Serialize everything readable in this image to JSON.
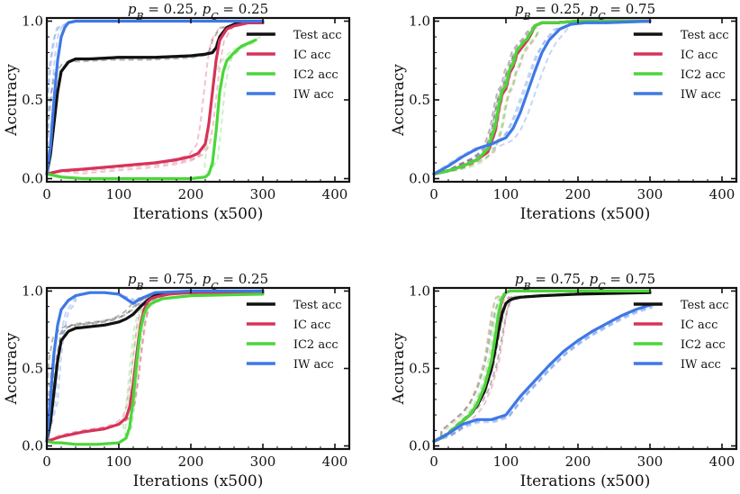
{
  "chart_data": [
    {
      "type": "line",
      "title": "p_B = 0.25, p_C = 0.25",
      "xlabel": "Iterations (x500)",
      "ylabel": "Accuracy",
      "xlim": [
        0,
        420
      ],
      "ylim": [
        0.0,
        1.0
      ],
      "xticks": [
        "0",
        "100",
        "200",
        "300",
        "400"
      ],
      "yticks": [
        "0.0",
        "0.5",
        "1.0"
      ],
      "legend": "top-right",
      "series": [
        {
          "name": "Test acc",
          "color": "#111111",
          "x": [
            0,
            5,
            10,
            15,
            20,
            30,
            40,
            60,
            100,
            150,
            200,
            220,
            230,
            235,
            240,
            250,
            260,
            270,
            280,
            300
          ],
          "y": [
            0.03,
            0.15,
            0.35,
            0.55,
            0.68,
            0.74,
            0.76,
            0.76,
            0.77,
            0.77,
            0.78,
            0.79,
            0.8,
            0.83,
            0.9,
            0.96,
            0.98,
            0.99,
            0.99,
            0.99
          ]
        },
        {
          "name": "IC acc",
          "color": "#d6335a",
          "x": [
            0,
            20,
            50,
            100,
            150,
            180,
            200,
            210,
            220,
            225,
            230,
            235,
            240,
            250,
            260,
            270,
            280,
            300
          ],
          "y": [
            0.03,
            0.05,
            0.06,
            0.08,
            0.1,
            0.12,
            0.14,
            0.16,
            0.22,
            0.35,
            0.55,
            0.75,
            0.88,
            0.95,
            0.97,
            0.98,
            0.99,
            0.99
          ]
        },
        {
          "name": "IC2 acc",
          "color": "#4bd63a",
          "x": [
            0,
            10,
            20,
            50,
            100,
            150,
            200,
            220,
            225,
            230,
            235,
            240,
            245,
            250,
            260,
            270,
            280,
            290
          ],
          "y": [
            0.03,
            0.02,
            0.01,
            0.0,
            0.0,
            0.0,
            0.0,
            0.01,
            0.03,
            0.1,
            0.3,
            0.55,
            0.68,
            0.75,
            0.8,
            0.84,
            0.86,
            0.88
          ]
        },
        {
          "name": "IW acc",
          "color": "#3f78e6",
          "x": [
            0,
            5,
            10,
            15,
            20,
            25,
            30,
            40,
            60,
            100,
            200,
            300
          ],
          "y": [
            0.03,
            0.2,
            0.5,
            0.75,
            0.9,
            0.96,
            0.99,
            1.0,
            1.0,
            1.0,
            1.0,
            1.0
          ]
        }
      ]
    },
    {
      "type": "line",
      "title": "p_B = 0.25, p_C = 0.75",
      "xlabel": "Iterations (x500)",
      "ylabel": "Accuracy",
      "xlim": [
        0,
        420
      ],
      "ylim": [
        0.0,
        1.0
      ],
      "xticks": [
        "0",
        "100",
        "200",
        "300",
        "400"
      ],
      "yticks": [
        "0.0",
        "0.5",
        "1.0"
      ],
      "legend": "top-right",
      "series": [
        {
          "name": "Test acc",
          "color": "#111111",
          "x": [
            0,
            20,
            40,
            60,
            75,
            85,
            90,
            95,
            100,
            105,
            110,
            115,
            120,
            125,
            130,
            135,
            140,
            145,
            150,
            170,
            200,
            300
          ],
          "y": [
            0.03,
            0.05,
            0.08,
            0.12,
            0.18,
            0.32,
            0.45,
            0.55,
            0.58,
            0.68,
            0.72,
            0.8,
            0.83,
            0.86,
            0.88,
            0.92,
            0.97,
            0.98,
            0.99,
            0.99,
            1.0,
            1.0
          ]
        },
        {
          "name": "IC acc",
          "color": "#d6335a",
          "x": [
            0,
            20,
            40,
            60,
            75,
            85,
            90,
            95,
            100,
            105,
            110,
            115,
            120,
            125,
            130,
            135,
            140,
            145,
            150,
            170,
            200,
            300
          ],
          "y": [
            0.03,
            0.05,
            0.08,
            0.12,
            0.17,
            0.3,
            0.44,
            0.54,
            0.57,
            0.67,
            0.71,
            0.79,
            0.82,
            0.85,
            0.88,
            0.92,
            0.97,
            0.98,
            0.99,
            0.99,
            1.0,
            1.0
          ]
        },
        {
          "name": "IC2 acc",
          "color": "#4bd63a",
          "x": [
            0,
            20,
            40,
            60,
            75,
            85,
            90,
            95,
            100,
            105,
            110,
            115,
            120,
            125,
            130,
            135,
            140,
            145,
            150,
            170,
            200,
            300
          ],
          "y": [
            0.03,
            0.05,
            0.08,
            0.12,
            0.19,
            0.33,
            0.46,
            0.56,
            0.59,
            0.69,
            0.73,
            0.81,
            0.84,
            0.87,
            0.89,
            0.93,
            0.97,
            0.98,
            0.99,
            0.99,
            1.0,
            1.0
          ]
        },
        {
          "name": "IW acc",
          "color": "#3f78e6",
          "x": [
            0,
            20,
            40,
            60,
            80,
            100,
            110,
            120,
            130,
            140,
            150,
            160,
            175,
            190,
            210,
            240,
            300
          ],
          "y": [
            0.03,
            0.08,
            0.14,
            0.19,
            0.22,
            0.26,
            0.32,
            0.42,
            0.55,
            0.68,
            0.8,
            0.88,
            0.95,
            0.98,
            0.99,
            0.99,
            1.0
          ]
        }
      ]
    },
    {
      "type": "line",
      "title": "p_B = 0.75, p_C = 0.25",
      "xlabel": "Iterations (x500)",
      "ylabel": "Accuracy",
      "xlim": [
        0,
        420
      ],
      "ylim": [
        0.0,
        1.0
      ],
      "xticks": [
        "0",
        "100",
        "200",
        "300",
        "400"
      ],
      "yticks": [
        "0.0",
        "0.5",
        "1.0"
      ],
      "legend": "top-right",
      "series": [
        {
          "name": "Test acc",
          "color": "#111111",
          "x": [
            0,
            5,
            10,
            15,
            20,
            30,
            40,
            60,
            80,
            100,
            110,
            120,
            130,
            140,
            150,
            160,
            170,
            200,
            300
          ],
          "y": [
            0.03,
            0.15,
            0.35,
            0.55,
            0.68,
            0.74,
            0.76,
            0.77,
            0.78,
            0.8,
            0.82,
            0.85,
            0.9,
            0.94,
            0.97,
            0.98,
            0.99,
            0.99,
            1.0
          ]
        },
        {
          "name": "IC acc",
          "color": "#d6335a",
          "x": [
            0,
            20,
            50,
            80,
            100,
            110,
            115,
            120,
            125,
            130,
            135,
            140,
            145,
            150,
            160,
            170,
            200,
            300
          ],
          "y": [
            0.03,
            0.06,
            0.09,
            0.11,
            0.14,
            0.18,
            0.25,
            0.4,
            0.6,
            0.78,
            0.88,
            0.93,
            0.95,
            0.96,
            0.97,
            0.98,
            0.99,
            0.99
          ]
        },
        {
          "name": "IC2 acc",
          "color": "#4bd63a",
          "x": [
            0,
            10,
            20,
            40,
            70,
            100,
            110,
            115,
            120,
            125,
            130,
            135,
            140,
            145,
            150,
            160,
            180,
            200,
            300
          ],
          "y": [
            0.03,
            0.02,
            0.02,
            0.01,
            0.01,
            0.02,
            0.05,
            0.12,
            0.3,
            0.55,
            0.75,
            0.85,
            0.9,
            0.92,
            0.93,
            0.95,
            0.96,
            0.97,
            0.98
          ]
        },
        {
          "name": "IW acc",
          "color": "#3f78e6",
          "x": [
            0,
            5,
            10,
            15,
            20,
            30,
            40,
            60,
            80,
            100,
            110,
            120,
            130,
            150,
            200,
            300
          ],
          "y": [
            0.03,
            0.3,
            0.6,
            0.78,
            0.88,
            0.94,
            0.97,
            0.99,
            0.99,
            0.98,
            0.95,
            0.92,
            0.95,
            0.99,
            1.0,
            1.0
          ]
        }
      ]
    },
    {
      "type": "line",
      "title": "p_B = 0.75, p_C = 0.75",
      "xlabel": "Iterations (x500)",
      "ylabel": "Accuracy",
      "xlim": [
        0,
        420
      ],
      "ylim": [
        0.0,
        1.0
      ],
      "xticks": [
        "0",
        "100",
        "200",
        "300",
        "400"
      ],
      "yticks": [
        "0.0",
        "0.5",
        "1.0"
      ],
      "legend": "top-right",
      "series": [
        {
          "name": "Test acc",
          "color": "#111111",
          "x": [
            0,
            10,
            20,
            30,
            40,
            50,
            60,
            70,
            80,
            85,
            90,
            95,
            100,
            105,
            110,
            120,
            150,
            200,
            300
          ],
          "y": [
            0.03,
            0.05,
            0.08,
            0.12,
            0.16,
            0.2,
            0.26,
            0.35,
            0.5,
            0.62,
            0.75,
            0.86,
            0.92,
            0.94,
            0.95,
            0.96,
            0.97,
            0.98,
            0.99
          ]
        },
        {
          "name": "IC acc",
          "color": "#d6335a",
          "x": [
            0,
            10,
            20,
            30,
            40,
            50,
            60,
            70,
            80,
            85,
            90,
            95,
            100,
            105,
            110,
            150,
            200,
            300
          ],
          "y": [
            0.03,
            0.05,
            0.08,
            0.12,
            0.16,
            0.2,
            0.27,
            0.38,
            0.55,
            0.7,
            0.85,
            0.95,
            0.99,
            1.0,
            1.0,
            1.0,
            1.0,
            1.0
          ]
        },
        {
          "name": "IC2 acc",
          "color": "#4bd63a",
          "x": [
            0,
            10,
            20,
            30,
            40,
            50,
            60,
            70,
            80,
            85,
            90,
            95,
            100,
            105,
            110,
            150,
            200,
            300
          ],
          "y": [
            0.03,
            0.05,
            0.08,
            0.12,
            0.16,
            0.2,
            0.27,
            0.38,
            0.55,
            0.7,
            0.86,
            0.96,
            0.99,
            1.0,
            1.0,
            1.0,
            1.0,
            1.0
          ]
        },
        {
          "name": "IW acc",
          "color": "#3f78e6",
          "x": [
            0,
            20,
            40,
            60,
            80,
            100,
            120,
            140,
            160,
            180,
            200,
            220,
            240,
            260,
            280,
            300
          ],
          "y": [
            0.03,
            0.08,
            0.14,
            0.17,
            0.17,
            0.2,
            0.32,
            0.42,
            0.52,
            0.61,
            0.68,
            0.74,
            0.79,
            0.84,
            0.88,
            0.91
          ]
        }
      ]
    }
  ]
}
